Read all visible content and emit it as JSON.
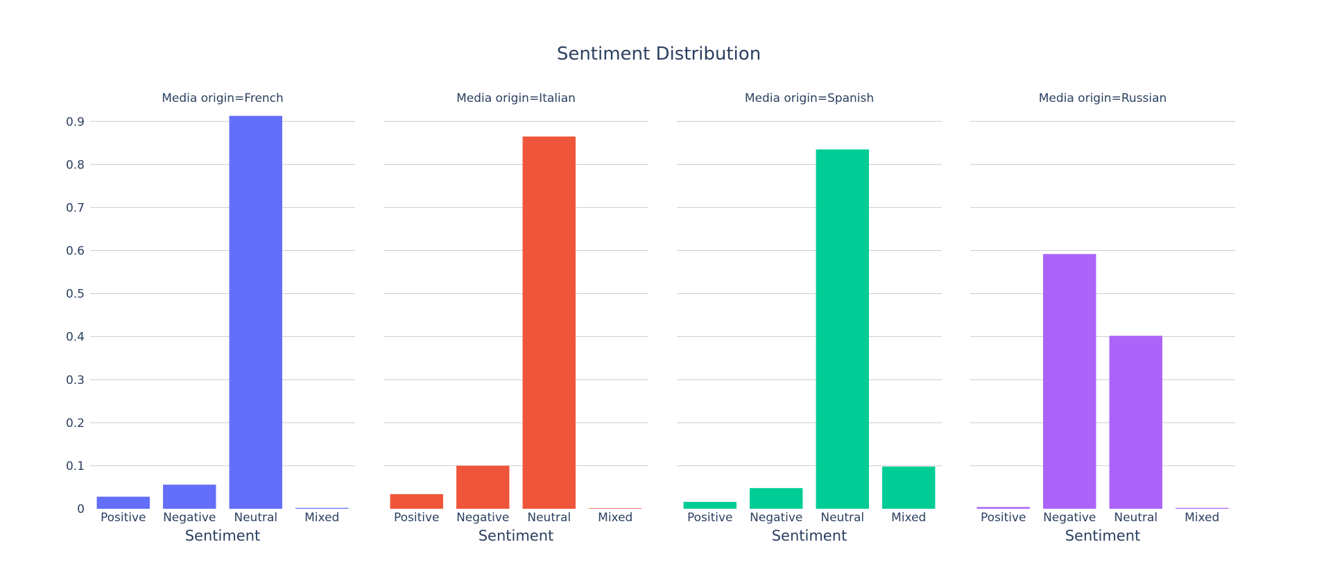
{
  "chart_data": {
    "type": "bar",
    "title": "Sentiment Distribution",
    "xlabel": "Sentiment",
    "ylabel": "",
    "ylim": [
      0,
      0.96
    ],
    "yticks": [
      0,
      0.1,
      0.2,
      0.3,
      0.4,
      0.5,
      0.6,
      0.7,
      0.8,
      0.9
    ],
    "ytick_labels": [
      "0",
      "0.1",
      "0.2",
      "0.3",
      "0.4",
      "0.5",
      "0.6",
      "0.7",
      "0.8",
      "0.9"
    ],
    "grid": true,
    "categories": [
      "Positive",
      "Negative",
      "Neutral",
      "Mixed"
    ],
    "panels": [
      {
        "label": "Media origin=French",
        "color": "#636efa",
        "values": [
          0.028,
          0.056,
          0.913,
          0.002
        ]
      },
      {
        "label": "Media origin=Italian",
        "color": "#ef553b",
        "values": [
          0.034,
          0.1,
          0.865,
          0.001
        ]
      },
      {
        "label": "Media origin=Spanish",
        "color": "#00cc96",
        "values": [
          0.016,
          0.048,
          0.835,
          0.098
        ]
      },
      {
        "label": "Media origin=Russian",
        "color": "#ab63fa",
        "values": [
          0.004,
          0.592,
          0.402,
          0.002
        ]
      }
    ]
  }
}
